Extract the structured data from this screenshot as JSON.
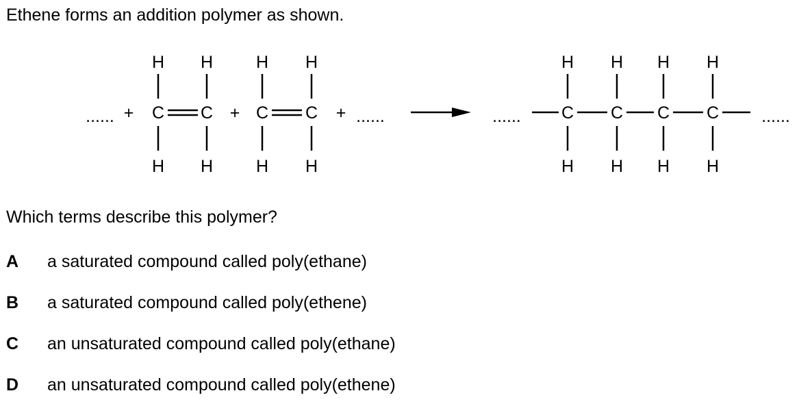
{
  "question": {
    "intro": "Ethene forms an addition polymer as shown.",
    "prompt": "Which terms describe this polymer?"
  },
  "reaction": {
    "ellipsis": "......",
    "plus": "+",
    "carbon": "C",
    "hydrogen": "H"
  },
  "options": [
    {
      "letter": "A",
      "text": "a saturated compound called poly(ethane)"
    },
    {
      "letter": "B",
      "text": "a saturated compound called poly(ethene)"
    },
    {
      "letter": "C",
      "text": "an unsaturated compound called poly(ethane)"
    },
    {
      "letter": "D",
      "text": "an unsaturated compound called poly(ethene)"
    }
  ]
}
